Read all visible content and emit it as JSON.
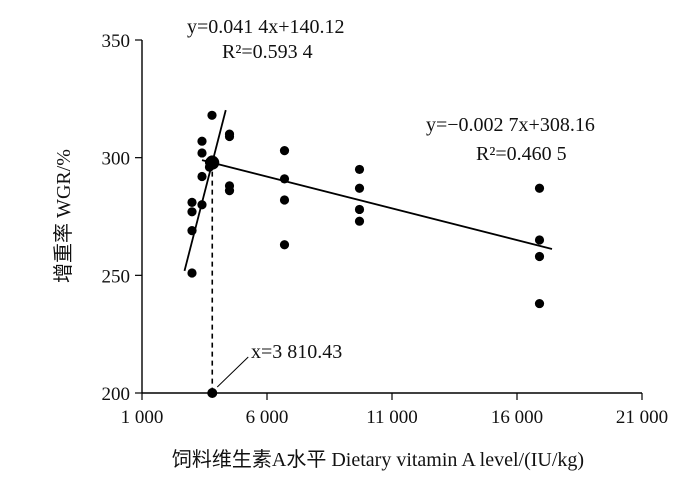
{
  "chart_data": {
    "type": "scatter",
    "title": "",
    "xlabel": "饲料维生素A水平  Dietary vitamin A level/(IU/kg)",
    "ylabel": "增重率  WGR/%",
    "xlim": [
      1000,
      21000
    ],
    "ylim": [
      200,
      350
    ],
    "x_ticks": [
      1000,
      6000,
      11000,
      16000,
      21000
    ],
    "x_tick_labels": [
      "1 000",
      "6 000",
      "11 000",
      "16 000",
      "21 000"
    ],
    "y_ticks": [
      200,
      250,
      300,
      350
    ],
    "y_tick_labels": [
      "200",
      "250",
      "300",
      "350"
    ],
    "grid": false,
    "legend": "none",
    "colors": {
      "points": "#000000",
      "lines": "#000000",
      "axes": "#000000"
    },
    "series": [
      {
        "points": [
          [
            3000,
            251
          ],
          [
            3000,
            269
          ],
          [
            3000,
            277
          ],
          [
            3000,
            281
          ],
          [
            3400,
            280
          ],
          [
            3400,
            292
          ],
          [
            3400,
            302
          ],
          [
            3400,
            307
          ],
          [
            3700,
            296
          ],
          [
            3700,
            298
          ],
          [
            3800,
            297
          ],
          [
            3800,
            299
          ],
          [
            3800,
            318
          ],
          [
            4500,
            286
          ],
          [
            4500,
            288
          ],
          [
            4500,
            309
          ],
          [
            4500,
            310
          ],
          [
            6700,
            263
          ],
          [
            6700,
            282
          ],
          [
            6700,
            291
          ],
          [
            6700,
            303
          ],
          [
            9700,
            273
          ],
          [
            9700,
            278
          ],
          [
            9700,
            287
          ],
          [
            9700,
            295
          ],
          [
            16900,
            238
          ],
          [
            16900,
            258
          ],
          [
            16900,
            265
          ],
          [
            16900,
            287
          ]
        ]
      }
    ],
    "fits": [
      {
        "slope": 0.0414,
        "intercept": 140.12,
        "x_range": [
          2700,
          4350
        ],
        "label_eq": "y=0.041 4x+140.12",
        "label_r2": "R²=0.593 4"
      },
      {
        "slope": -0.0027,
        "intercept": 308.16,
        "x_range": [
          3400,
          17400
        ],
        "label_eq": "y=−0.002 7x+308.16",
        "label_r2": "R²=0.460 5"
      }
    ],
    "breakpoint": {
      "x": 3810.43,
      "label": "x=3 810.43"
    }
  }
}
